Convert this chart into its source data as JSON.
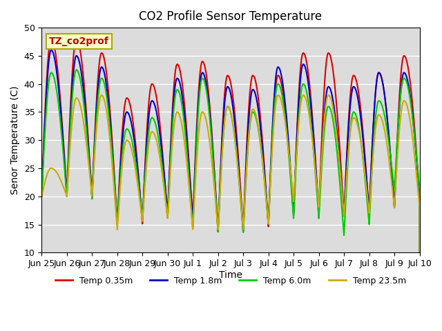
{
  "title": "CO2 Profile Sensor Temperature",
  "ylabel": "Senor Temperature (C)",
  "xlabel": "Time",
  "ylim": [
    10,
    50
  ],
  "background_color": "#dcdcdc",
  "figure_color": "#ffffff",
  "grid_color": "#ffffff",
  "legend_label": "TZ_co2prof",
  "series": {
    "Temp 0.35m": {
      "color": "#dd0000",
      "lw": 1.5
    },
    "Temp 1.8m": {
      "color": "#0000cc",
      "lw": 1.5
    },
    "Temp 6.0m": {
      "color": "#00cc00",
      "lw": 1.5
    },
    "Temp 23.5m": {
      "color": "#ccaa00",
      "lw": 1.5
    }
  },
  "xtick_labels": [
    "Jun 25",
    "Jun 26",
    "Jun 27",
    "Jun 28",
    "Jun 29",
    "Jun 30",
    "Jul 1",
    "Jul 2",
    "Jul 3",
    "Jul 4",
    "Jul 5",
    "Jul 6",
    "Jul 7",
    "Jul 8",
    "Jul 9",
    "Jul 10"
  ],
  "xtick_positions": [
    0,
    1,
    2,
    3,
    4,
    5,
    6,
    7,
    8,
    9,
    10,
    11,
    12,
    13,
    14,
    15
  ],
  "n_points": 3000,
  "x_start": 0,
  "x_end": 15,
  "period": 1.0,
  "peaks_0.35m": [
    48.0,
    48.0,
    45.5,
    37.5,
    40.0,
    43.5,
    44.0,
    41.5,
    41.5,
    41.5,
    45.5,
    45.5,
    41.5,
    42.0,
    45.0
  ],
  "troughs_0.35m": [
    20.0,
    20.5,
    19.5,
    15.0,
    15.0,
    16.0,
    15.5,
    13.5,
    14.0,
    14.5,
    16.5,
    17.0,
    16.5,
    17.0,
    18.0,
    20.0
  ],
  "peaks_1.8m": [
    46.0,
    45.0,
    43.0,
    35.0,
    37.0,
    41.0,
    42.0,
    39.5,
    39.0,
    43.0,
    43.5,
    39.5,
    39.5,
    42.0,
    42.0
  ],
  "troughs_1.8m": [
    20.0,
    20.0,
    20.0,
    15.0,
    16.0,
    17.0,
    15.5,
    14.0,
    13.5,
    15.0,
    17.0,
    17.0,
    16.5,
    17.0,
    18.0,
    20.0
  ],
  "peaks_6.0m": [
    42.0,
    42.5,
    41.0,
    32.0,
    34.0,
    39.0,
    41.0,
    36.0,
    35.0,
    40.0,
    40.0,
    36.0,
    35.0,
    37.0,
    41.0
  ],
  "troughs_6.0m": [
    20.0,
    20.0,
    19.5,
    15.0,
    16.0,
    16.0,
    14.0,
    13.5,
    13.5,
    15.0,
    16.0,
    16.0,
    13.0,
    15.0,
    21.0,
    21.0
  ],
  "peaks_23.5m": [
    25.0,
    37.5,
    38.0,
    30.0,
    31.5,
    35.0,
    35.0,
    36.0,
    35.5,
    38.0,
    38.0,
    38.0,
    34.0,
    34.5,
    37.0
  ],
  "troughs_23.5m": [
    20.0,
    20.0,
    20.0,
    14.0,
    15.5,
    16.0,
    14.0,
    14.0,
    14.0,
    15.0,
    19.0,
    18.0,
    16.5,
    17.0,
    18.0,
    18.0
  ]
}
